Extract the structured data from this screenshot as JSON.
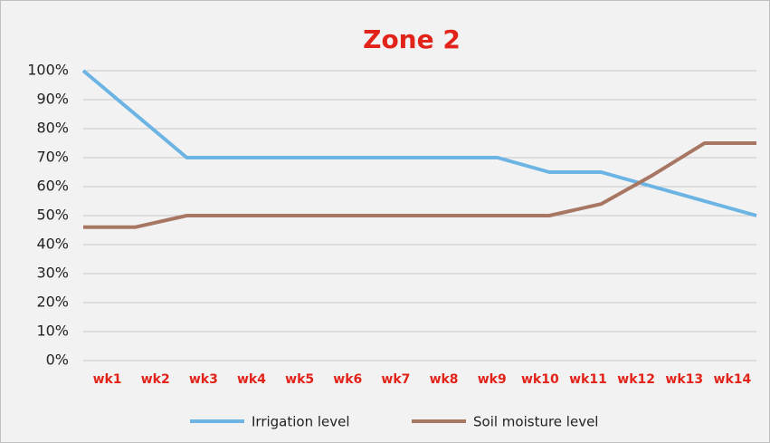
{
  "chart_data": {
    "type": "line",
    "title": "Zone 2",
    "categories": [
      "wk1",
      "wk2",
      "wk3",
      "wk4",
      "wk5",
      "wk6",
      "wk7",
      "wk8",
      "wk9",
      "wk10",
      "wk11",
      "wk12",
      "wk13",
      "wk14"
    ],
    "series": [
      {
        "name": "Irrigation level",
        "color": "#6cb4e4",
        "values": [
          100,
          85,
          70,
          70,
          70,
          70,
          70,
          70,
          70,
          65,
          65,
          60,
          55,
          50
        ]
      },
      {
        "name": "Soil moisture level",
        "color": "#a87764",
        "values": [
          46,
          46,
          50,
          50,
          50,
          50,
          50,
          50,
          50,
          50,
          54,
          64,
          75,
          75
        ]
      }
    ],
    "ylim": [
      0,
      100
    ],
    "yticks": [
      {
        "value": 0,
        "label": "0%"
      },
      {
        "value": 10,
        "label": "10%"
      },
      {
        "value": 20,
        "label": "20%"
      },
      {
        "value": 30,
        "label": "30%"
      },
      {
        "value": 40,
        "label": "40%"
      },
      {
        "value": 50,
        "label": "50%"
      },
      {
        "value": 60,
        "label": "60%"
      },
      {
        "value": 70,
        "label": "70%"
      },
      {
        "value": 80,
        "label": "80%"
      },
      {
        "value": 90,
        "label": "90%"
      },
      {
        "value": 100,
        "label": "100%"
      }
    ],
    "grid": true,
    "legend": "bottom"
  }
}
